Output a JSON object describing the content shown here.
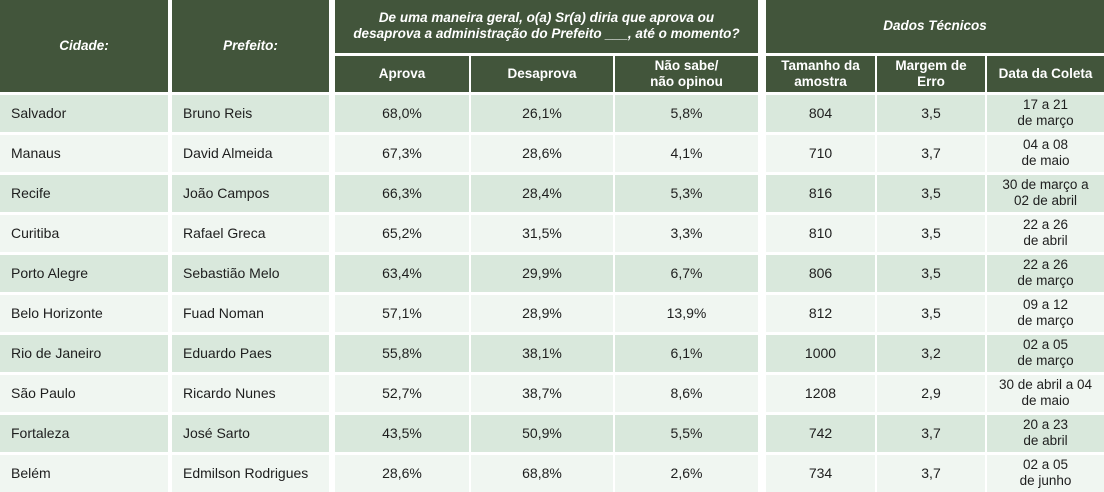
{
  "table": {
    "colors": {
      "header_green": "#42553b",
      "row_odd": "#d9e8dc",
      "row_even": "#f0f6f1",
      "text": "#1e1e1e",
      "header_text": "#ffffff"
    },
    "header": {
      "cidade": "Cidade:",
      "prefeito": "Prefeito:",
      "question": "De uma maneira geral, o(a) Sr(a) diria que aprova ou\ndesaprova a administração do Prefeito ___, até o momento?",
      "dados_tecnicos": "Dados Técnicos",
      "aprova": "Aprova",
      "desaprova": "Desaprova",
      "nao_sabe": "Não sabe/\nnão opinou",
      "tamanho_amostra": "Tamanho da\namostra",
      "margem_erro": "Margem de\nErro",
      "data_coleta": "Data da Coleta"
    },
    "rows": [
      {
        "cidade": "Salvador",
        "prefeito": "Bruno Reis",
        "aprova": "68,0%",
        "desaprova": "26,1%",
        "nao_sabe": "5,8%",
        "amostra": "804",
        "margem": "3,5",
        "data": "17 a 21\nde março"
      },
      {
        "cidade": "Manaus",
        "prefeito": "David Almeida",
        "aprova": "67,3%",
        "desaprova": "28,6%",
        "nao_sabe": "4,1%",
        "amostra": "710",
        "margem": "3,7",
        "data": "04 a 08\nde maio"
      },
      {
        "cidade": "Recife",
        "prefeito": "João Campos",
        "aprova": "66,3%",
        "desaprova": "28,4%",
        "nao_sabe": "5,3%",
        "amostra": "816",
        "margem": "3,5",
        "data": "30 de março a\n02 de abril"
      },
      {
        "cidade": "Curitiba",
        "prefeito": "Rafael Greca",
        "aprova": "65,2%",
        "desaprova": "31,5%",
        "nao_sabe": "3,3%",
        "amostra": "810",
        "margem": "3,5",
        "data": "22 a 26\nde abril"
      },
      {
        "cidade": "Porto Alegre",
        "prefeito": "Sebastião Melo",
        "aprova": "63,4%",
        "desaprova": "29,9%",
        "nao_sabe": "6,7%",
        "amostra": "806",
        "margem": "3,5",
        "data": "22 a 26\nde março"
      },
      {
        "cidade": "Belo Horizonte",
        "prefeito": "Fuad Noman",
        "aprova": "57,1%",
        "desaprova": "28,9%",
        "nao_sabe": "13,9%",
        "amostra": "812",
        "margem": "3,5",
        "data": "09 a 12\nde março"
      },
      {
        "cidade": "Rio de Janeiro",
        "prefeito": "Eduardo Paes",
        "aprova": "55,8%",
        "desaprova": "38,1%",
        "nao_sabe": "6,1%",
        "amostra": "1000",
        "margem": "3,2",
        "data": "02 a 05\nde março"
      },
      {
        "cidade": "São Paulo",
        "prefeito": "Ricardo Nunes",
        "aprova": "52,7%",
        "desaprova": "38,7%",
        "nao_sabe": "8,6%",
        "amostra": "1208",
        "margem": "2,9",
        "data": "30 de abril a 04\nde maio"
      },
      {
        "cidade": "Fortaleza",
        "prefeito": "José Sarto",
        "aprova": "43,5%",
        "desaprova": "50,9%",
        "nao_sabe": "5,5%",
        "amostra": "742",
        "margem": "3,7",
        "data": "20 a 23\nde abril"
      },
      {
        "cidade": "Belém",
        "prefeito": "Edmilson Rodrigues",
        "aprova": "28,6%",
        "desaprova": "68,8%",
        "nao_sabe": "2,6%",
        "amostra": "734",
        "margem": "3,7",
        "data": "02 a 05\nde junho"
      }
    ]
  }
}
